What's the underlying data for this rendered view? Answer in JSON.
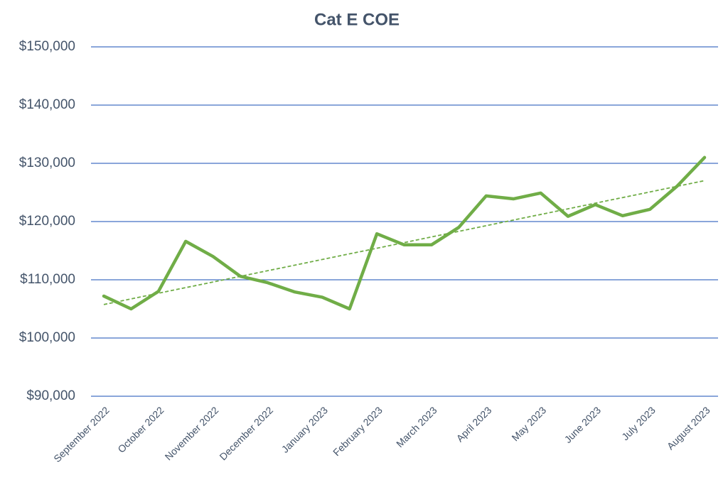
{
  "chart_data": {
    "type": "line",
    "title": "Cat E COE",
    "categories": [
      "September 2022",
      null,
      "October 2022",
      null,
      "November 2022",
      null,
      "December 2022",
      null,
      "January 2023",
      null,
      "February 2023",
      null,
      "March 2023",
      null,
      "April 2023",
      null,
      "May 2023",
      null,
      "June 2023",
      null,
      "July 2023",
      null,
      "August 2023"
    ],
    "series": [
      {
        "name": "Cat E COE",
        "color": "#70ad47",
        "values": [
          107200,
          105000,
          108000,
          116600,
          114000,
          110600,
          109500,
          107900,
          107000,
          105000,
          117900,
          116000,
          116000,
          119000,
          124400,
          123900,
          124900,
          120900,
          122900,
          121000,
          122100,
          126100,
          131000
        ]
      }
    ],
    "ylim": [
      90000,
      150000
    ],
    "yticks": [
      {
        "value": 90000,
        "label": "$90,000"
      },
      {
        "value": 100000,
        "label": "$100,000"
      },
      {
        "value": 110000,
        "label": "$110,000"
      },
      {
        "value": 120000,
        "label": "$120,000"
      },
      {
        "value": 130000,
        "label": "$130,000"
      },
      {
        "value": 140000,
        "label": "$140,000"
      },
      {
        "value": 150000,
        "label": "$150,000"
      }
    ],
    "grid": true,
    "grid_color": "#4472c4",
    "trendline": true
  }
}
